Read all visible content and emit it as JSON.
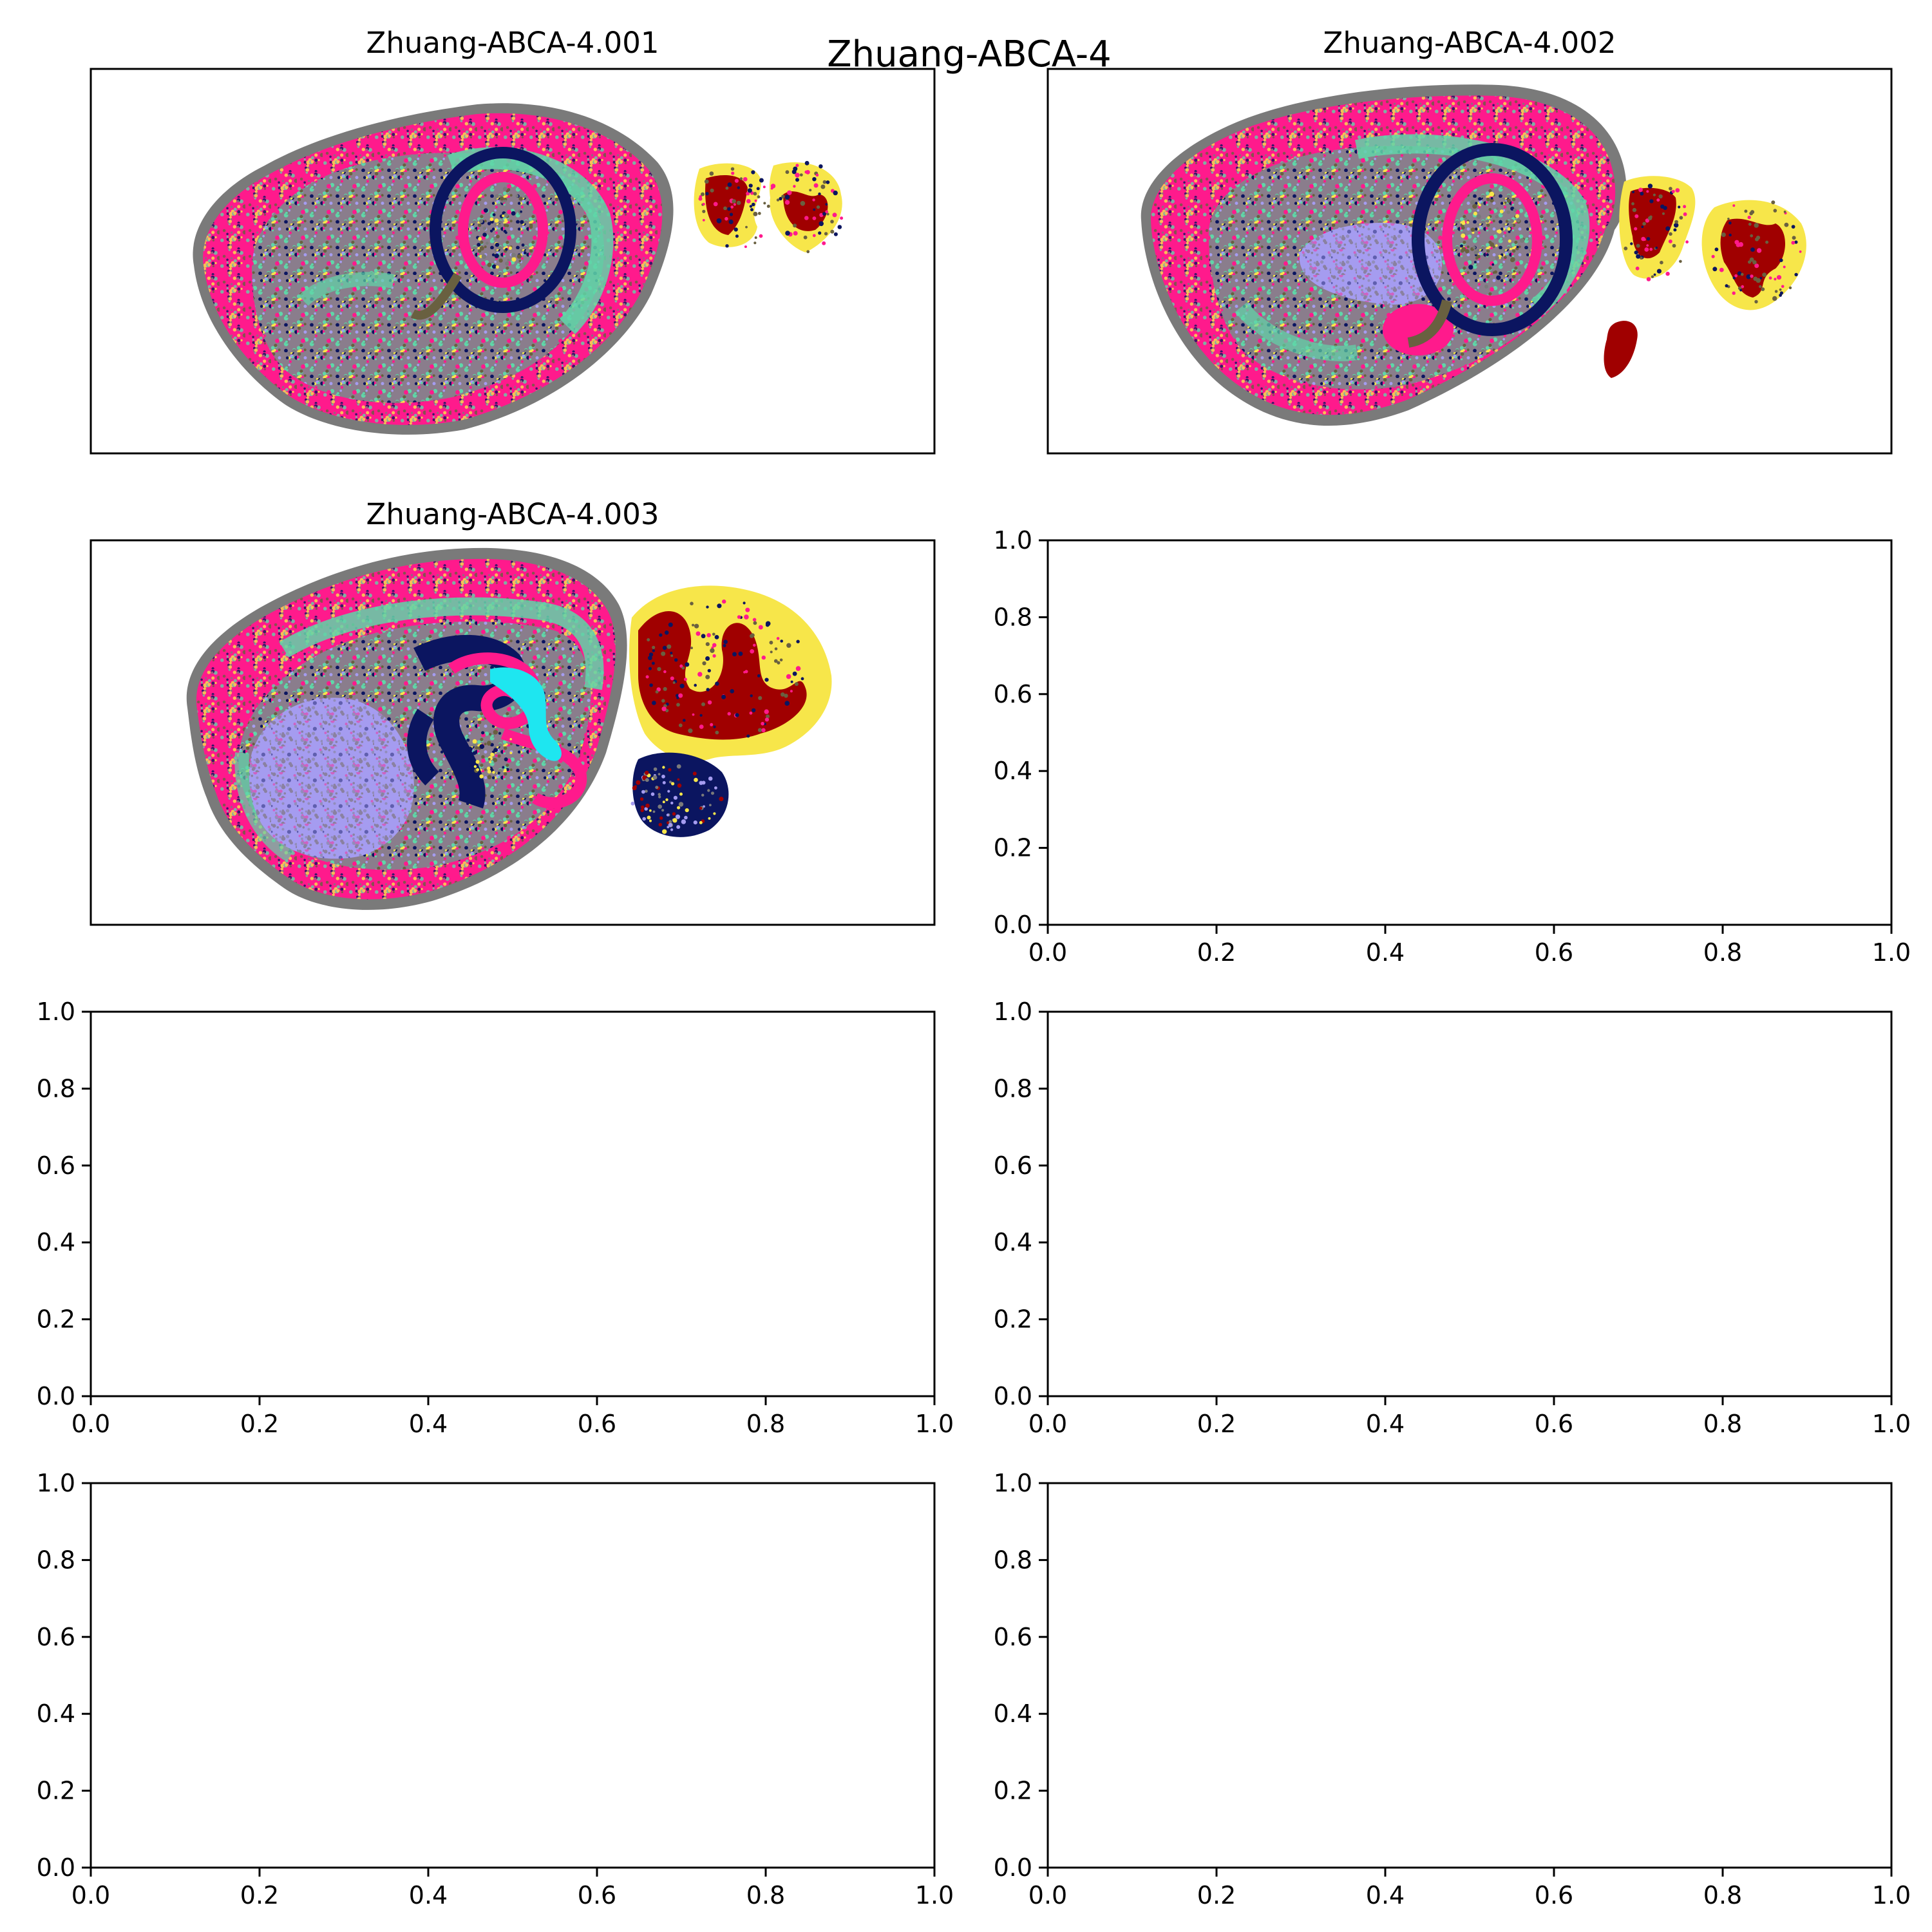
{
  "figure": {
    "suptitle": "Zhuang-ABCA-4"
  },
  "chart_data": [
    {
      "type": "scatter",
      "title": "Zhuang-ABCA-4.001",
      "axes_visible": false,
      "region_colors": [
        "#ff1a8c",
        "#5fd6a8",
        "#0b1560",
        "#696040",
        "#f7e64a",
        "#a00000",
        "#a59cf0",
        "#1ee6f0",
        "#7a7a7a"
      ],
      "regions": [
        {
          "name": "outer rim",
          "color": "#7a7a7a"
        },
        {
          "name": "cortex",
          "color": "#ff1a8c"
        },
        {
          "name": "deep cortex band",
          "color": "#5fd6a8"
        },
        {
          "name": "hippocampal ring",
          "color": "#0b1560"
        },
        {
          "name": "cerebellum granular",
          "color": "#a00000"
        },
        {
          "name": "cerebellum molecular",
          "color": "#f7e64a"
        }
      ]
    },
    {
      "type": "scatter",
      "title": "Zhuang-ABCA-4.002",
      "axes_visible": false,
      "region_colors": [
        "#ff1a8c",
        "#5fd6a8",
        "#0b1560",
        "#696040",
        "#f7e64a",
        "#a00000",
        "#a59cf0",
        "#7a7a7a"
      ],
      "regions": [
        {
          "name": "outer rim",
          "color": "#7a7a7a"
        },
        {
          "name": "cortex",
          "color": "#ff1a8c"
        },
        {
          "name": "deep cortex band",
          "color": "#5fd6a8"
        },
        {
          "name": "hippocampal ring",
          "color": "#0b1560"
        },
        {
          "name": "striatum",
          "color": "#a59cf0"
        },
        {
          "name": "cerebellum granular",
          "color": "#a00000"
        },
        {
          "name": "cerebellum molecular",
          "color": "#f7e64a"
        }
      ]
    },
    {
      "type": "scatter",
      "title": "Zhuang-ABCA-4.003",
      "axes_visible": false,
      "region_colors": [
        "#ff1a8c",
        "#5fd6a8",
        "#0b1560",
        "#696040",
        "#f7e64a",
        "#a00000",
        "#a59cf0",
        "#1ee6f0",
        "#7a7a7a"
      ],
      "regions": [
        {
          "name": "outer rim",
          "color": "#7a7a7a"
        },
        {
          "name": "cortex",
          "color": "#ff1a8c"
        },
        {
          "name": "deep cortex band",
          "color": "#5fd6a8"
        },
        {
          "name": "hippocampus",
          "color": "#0b1560"
        },
        {
          "name": "striatum",
          "color": "#a59cf0"
        },
        {
          "name": "ventricle",
          "color": "#1ee6f0"
        },
        {
          "name": "cerebellum granular",
          "color": "#a00000"
        },
        {
          "name": "cerebellum molecular",
          "color": "#f7e64a"
        }
      ]
    },
    {
      "type": "scatter",
      "title": "",
      "empty": true,
      "xlim": [
        0.0,
        1.0
      ],
      "ylim": [
        0.0,
        1.0
      ],
      "xticks": [
        "0.0",
        "0.2",
        "0.4",
        "0.6",
        "0.8",
        "1.0"
      ],
      "yticks": [
        "0.0",
        "0.2",
        "0.4",
        "0.6",
        "0.8",
        "1.0"
      ]
    },
    {
      "type": "scatter",
      "title": "",
      "empty": true,
      "xlim": [
        0.0,
        1.0
      ],
      "ylim": [
        0.0,
        1.0
      ],
      "xticks": [
        "0.0",
        "0.2",
        "0.4",
        "0.6",
        "0.8",
        "1.0"
      ],
      "yticks": [
        "0.0",
        "0.2",
        "0.4",
        "0.6",
        "0.8",
        "1.0"
      ]
    },
    {
      "type": "scatter",
      "title": "",
      "empty": true,
      "xlim": [
        0.0,
        1.0
      ],
      "ylim": [
        0.0,
        1.0
      ],
      "xticks": [
        "0.0",
        "0.2",
        "0.4",
        "0.6",
        "0.8",
        "1.0"
      ],
      "yticks": [
        "0.0",
        "0.2",
        "0.4",
        "0.6",
        "0.8",
        "1.0"
      ]
    },
    {
      "type": "scatter",
      "title": "",
      "empty": true,
      "xlim": [
        0.0,
        1.0
      ],
      "ylim": [
        0.0,
        1.0
      ],
      "xticks": [
        "0.0",
        "0.2",
        "0.4",
        "0.6",
        "0.8",
        "1.0"
      ],
      "yticks": [
        "0.0",
        "0.2",
        "0.4",
        "0.6",
        "0.8",
        "1.0"
      ]
    },
    {
      "type": "scatter",
      "title": "",
      "empty": true,
      "xlim": [
        0.0,
        1.0
      ],
      "ylim": [
        0.0,
        1.0
      ],
      "xticks": [
        "0.0",
        "0.2",
        "0.4",
        "0.6",
        "0.8",
        "1.0"
      ],
      "yticks": [
        "0.0",
        "0.2",
        "0.4",
        "0.6",
        "0.8",
        "1.0"
      ]
    }
  ]
}
